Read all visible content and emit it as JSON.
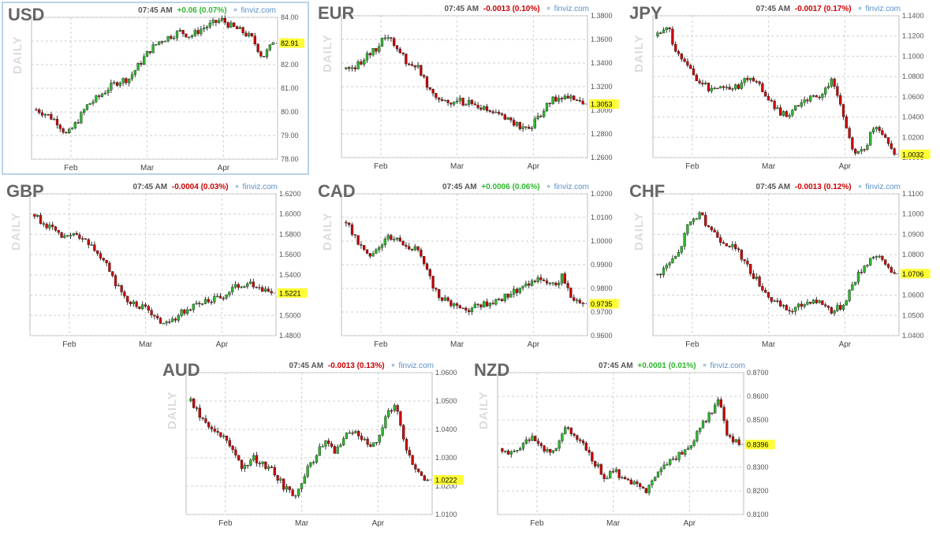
{
  "colors": {
    "up": "#2eb82e",
    "down": "#cc0000",
    "grid": "#cfcfcf",
    "highlight": "#ffff33",
    "brand": "#5b8fc7"
  },
  "header_time": "07:45 AM",
  "brand": "finviz.com",
  "period_label": "DAILY",
  "x_labels": [
    "Feb",
    "Mar",
    "Apr"
  ],
  "chart_data": [
    {
      "type": "candlestick",
      "symbol": "USD",
      "change": "+0.06 (0.07%)",
      "direction": "up",
      "last_label": "82.91",
      "last": 82.91,
      "ylim": [
        78,
        84
      ],
      "yticks": [
        {
          "v": 84,
          "label": "84.00"
        },
        {
          "v": 83,
          "label": "83.00"
        },
        {
          "v": 82,
          "label": "82.00"
        },
        {
          "v": 81,
          "label": "81.00"
        },
        {
          "v": 80,
          "label": "80.00"
        },
        {
          "v": 79,
          "label": "79.00"
        },
        {
          "v": 78,
          "label": "78.00"
        }
      ],
      "path": [
        80.1,
        79.9,
        79.6,
        79.0,
        79.6,
        80.3,
        80.6,
        81.0,
        81.3,
        81.4,
        82.0,
        82.6,
        83.0,
        83.2,
        83.4,
        83.2,
        83.5,
        83.7,
        83.9,
        83.6,
        83.4,
        83.1,
        82.3,
        82.9
      ]
    },
    {
      "type": "candlestick",
      "symbol": "EUR",
      "change": "-0.0013 (0.10%)",
      "direction": "down",
      "last_label": "1.3053",
      "last": 1.3053,
      "ylim": [
        1.26,
        1.38
      ],
      "yticks": [
        {
          "v": 1.38,
          "label": "1.3800"
        },
        {
          "v": 1.36,
          "label": "1.3600"
        },
        {
          "v": 1.34,
          "label": "1.3400"
        },
        {
          "v": 1.32,
          "label": "1.3200"
        },
        {
          "v": 1.3,
          "label": "1.3000"
        },
        {
          "v": 1.28,
          "label": "1.2800"
        },
        {
          "v": 1.26,
          "label": "1.2600"
        }
      ],
      "path": [
        1.335,
        1.338,
        1.345,
        1.353,
        1.364,
        1.352,
        1.34,
        1.336,
        1.32,
        1.31,
        1.307,
        1.308,
        1.306,
        1.302,
        1.298,
        1.296,
        1.292,
        1.285,
        1.286,
        1.298,
        1.308,
        1.312,
        1.309,
        1.305
      ]
    },
    {
      "type": "candlestick",
      "symbol": "JPY",
      "change": "-0.0017 (0.17%)",
      "direction": "down",
      "last_label": "1.0032",
      "last": 1.0032,
      "ylim": [
        1.0,
        1.14
      ],
      "yticks": [
        {
          "v": 1.14,
          "label": "1.1400"
        },
        {
          "v": 1.12,
          "label": "1.1200"
        },
        {
          "v": 1.1,
          "label": "1.1000"
        },
        {
          "v": 1.08,
          "label": "1.0800"
        },
        {
          "v": 1.06,
          "label": "1.0600"
        },
        {
          "v": 1.04,
          "label": "1.0400"
        },
        {
          "v": 1.02,
          "label": "1.0200"
        },
        {
          "v": 1.0,
          "label": "1.0000"
        }
      ],
      "path": [
        1.12,
        1.128,
        1.1,
        1.09,
        1.075,
        1.068,
        1.072,
        1.068,
        1.072,
        1.08,
        1.07,
        1.055,
        1.042,
        1.045,
        1.054,
        1.058,
        1.063,
        1.078,
        1.04,
        1.008,
        1.005,
        1.03,
        1.02,
        1.003
      ]
    },
    {
      "type": "candlestick",
      "symbol": "GBP",
      "change": "-0.0004 (0.03%)",
      "direction": "down",
      "last_label": "1.5221",
      "last": 1.5221,
      "ylim": [
        1.48,
        1.62
      ],
      "yticks": [
        {
          "v": 1.62,
          "label": "1.6200"
        },
        {
          "v": 1.6,
          "label": "1.6000"
        },
        {
          "v": 1.58,
          "label": "1.5800"
        },
        {
          "v": 1.56,
          "label": "1.5600"
        },
        {
          "v": 1.54,
          "label": "1.5400"
        },
        {
          "v": 1.52,
          "label": "1.5200"
        },
        {
          "v": 1.5,
          "label": "1.5000"
        },
        {
          "v": 1.48,
          "label": "1.4800"
        }
      ],
      "path": [
        1.6,
        1.59,
        1.582,
        1.575,
        1.58,
        1.572,
        1.565,
        1.548,
        1.53,
        1.515,
        1.51,
        1.505,
        1.495,
        1.49,
        1.5,
        1.508,
        1.512,
        1.516,
        1.518,
        1.525,
        1.53,
        1.532,
        1.528,
        1.522
      ]
    },
    {
      "type": "candlestick",
      "symbol": "CAD",
      "change": "+0.0006 (0.06%)",
      "direction": "up",
      "last_label": "0.9735",
      "last": 0.9735,
      "ylim": [
        0.96,
        1.02
      ],
      "yticks": [
        {
          "v": 1.02,
          "label": "1.0200"
        },
        {
          "v": 1.01,
          "label": "1.0100"
        },
        {
          "v": 1.0,
          "label": "1.0000"
        },
        {
          "v": 0.99,
          "label": "0.9900"
        },
        {
          "v": 0.98,
          "label": "0.9800"
        },
        {
          "v": 0.97,
          "label": "0.9700"
        },
        {
          "v": 0.96,
          "label": "0.9600"
        }
      ],
      "path": [
        1.008,
        1.0,
        0.994,
        0.997,
        1.002,
        1.001,
        0.998,
        0.996,
        0.985,
        0.977,
        0.974,
        0.972,
        0.971,
        0.973,
        0.974,
        0.975,
        0.978,
        0.98,
        0.982,
        0.984,
        0.981,
        0.985,
        0.976,
        0.9735
      ]
    },
    {
      "type": "candlestick",
      "symbol": "CHF",
      "change": "-0.0013 (0.12%)",
      "direction": "down",
      "last_label": "1.0706",
      "last": 1.0706,
      "ylim": [
        1.04,
        1.11
      ],
      "yticks": [
        {
          "v": 1.11,
          "label": "1.1100"
        },
        {
          "v": 1.1,
          "label": "1.1000"
        },
        {
          "v": 1.09,
          "label": "1.0900"
        },
        {
          "v": 1.08,
          "label": "1.0800"
        },
        {
          "v": 1.07,
          "label": "1.0700"
        },
        {
          "v": 1.06,
          "label": "1.0600"
        },
        {
          "v": 1.05,
          "label": "1.0500"
        },
        {
          "v": 1.04,
          "label": "1.0400"
        }
      ],
      "path": [
        1.07,
        1.075,
        1.08,
        1.095,
        1.1,
        1.094,
        1.088,
        1.085,
        1.08,
        1.072,
        1.065,
        1.058,
        1.054,
        1.052,
        1.055,
        1.058,
        1.056,
        1.052,
        1.055,
        1.066,
        1.074,
        1.08,
        1.076,
        1.0706
      ]
    },
    {
      "type": "candlestick",
      "symbol": "AUD",
      "change": "-0.0013 (0.13%)",
      "direction": "down",
      "last_label": "1.0222",
      "last": 1.0222,
      "ylim": [
        1.01,
        1.06
      ],
      "yticks": [
        {
          "v": 1.06,
          "label": "1.0600"
        },
        {
          "v": 1.05,
          "label": "1.0500"
        },
        {
          "v": 1.04,
          "label": "1.0400"
        },
        {
          "v": 1.03,
          "label": "1.0300"
        },
        {
          "v": 1.02,
          "label": "1.0200"
        },
        {
          "v": 1.01,
          "label": "1.0100"
        }
      ],
      "path": [
        1.05,
        1.044,
        1.04,
        1.038,
        1.032,
        1.027,
        1.03,
        1.028,
        1.025,
        1.02,
        1.016,
        1.024,
        1.03,
        1.036,
        1.032,
        1.038,
        1.04,
        1.036,
        1.034,
        1.045,
        1.049,
        1.032,
        1.025,
        1.0222
      ]
    },
    {
      "type": "candlestick",
      "symbol": "NZD",
      "change": "+0.0001 (0.01%)",
      "direction": "up",
      "last_label": "0.8396",
      "last": 0.8396,
      "ylim": [
        0.81,
        0.87
      ],
      "yticks": [
        {
          "v": 0.87,
          "label": "0.8700"
        },
        {
          "v": 0.86,
          "label": "0.8600"
        },
        {
          "v": 0.85,
          "label": "0.8500"
        },
        {
          "v": 0.84,
          "label": "0.8400"
        },
        {
          "v": 0.83,
          "label": "0.8300"
        },
        {
          "v": 0.82,
          "label": "0.8200"
        },
        {
          "v": 0.81,
          "label": "0.8100"
        }
      ],
      "path": [
        0.838,
        0.835,
        0.84,
        0.843,
        0.838,
        0.836,
        0.846,
        0.844,
        0.838,
        0.832,
        0.826,
        0.828,
        0.825,
        0.822,
        0.82,
        0.826,
        0.832,
        0.835,
        0.838,
        0.845,
        0.852,
        0.858,
        0.842,
        0.8396
      ]
    }
  ]
}
